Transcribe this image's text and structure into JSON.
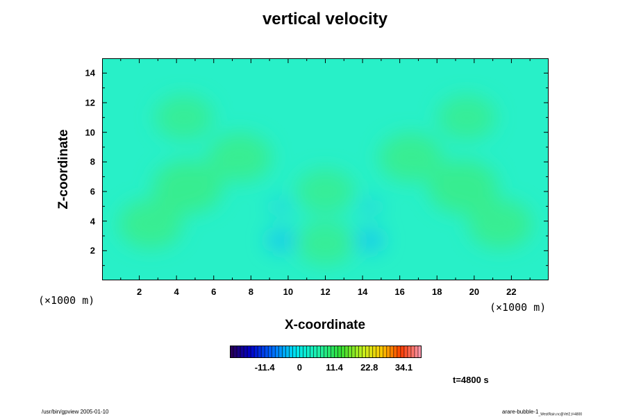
{
  "chart_data": {
    "type": "heatmap",
    "title": "vertical velocity",
    "xlabel": "X-coordinate",
    "ylabel": "Z-coordinate",
    "x_unit": "(×1000 m)",
    "y_unit": "(×1000 m)",
    "xlim": [
      0,
      24
    ],
    "ylim": [
      0,
      15
    ],
    "x_ticks": [
      "2",
      "4",
      "6",
      "8",
      "10",
      "12",
      "14",
      "16",
      "18",
      "20",
      "22"
    ],
    "y_ticks": [
      "2",
      "4",
      "6",
      "8",
      "10",
      "12",
      "14"
    ],
    "colorbar": {
      "range": [
        -22.8,
        39.9
      ],
      "ticks": [
        "-11.4",
        "0",
        "11.4",
        "22.8",
        "34.1"
      ]
    },
    "features": [
      {
        "x": 4.6,
        "z": 6.3,
        "value": 6
      },
      {
        "x": 19.4,
        "z": 6.3,
        "value": 6
      },
      {
        "x": 7.4,
        "z": 8.3,
        "value": 5
      },
      {
        "x": 16.6,
        "z": 8.3,
        "value": 5
      },
      {
        "x": 2.6,
        "z": 3.8,
        "value": 5
      },
      {
        "x": 21.4,
        "z": 3.8,
        "value": 5
      },
      {
        "x": 12.0,
        "z": 6.0,
        "value": 4
      },
      {
        "x": 12.0,
        "z": 2.5,
        "value": 4
      },
      {
        "x": 4.4,
        "z": 11.0,
        "value": 4
      },
      {
        "x": 19.6,
        "z": 11.0,
        "value": 4
      },
      {
        "x": 9.6,
        "z": 2.7,
        "value": -7
      },
      {
        "x": 14.4,
        "z": 2.7,
        "value": -7
      },
      {
        "x": 9.6,
        "z": 5.0,
        "value": -2
      },
      {
        "x": 14.4,
        "z": 5.0,
        "value": -2
      }
    ],
    "time_label": "t=4800 s"
  },
  "footer": {
    "left": "/usr/bin/gpview 2005-01-10",
    "right_main": "arare-bubble-1",
    "right_sub": "_WestRain.nc@Vel2,t=4800"
  },
  "colors": {
    "background_field": "#28f0c8",
    "positive_feature": "#3cec82",
    "negative_feature": "#1ac6f0"
  }
}
